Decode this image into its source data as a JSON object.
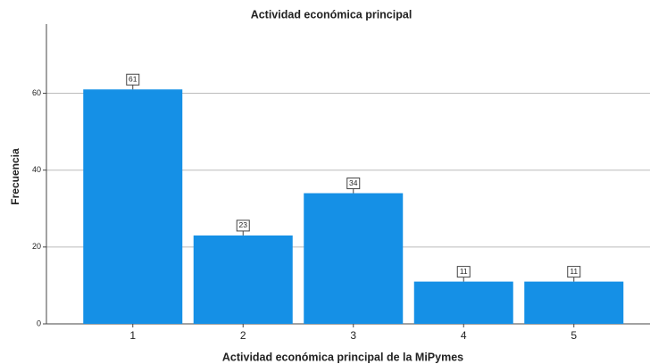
{
  "chart_data": {
    "type": "bar",
    "title": "Actividad económica principal",
    "x_label": "Actividad económica principal de la MiPymes",
    "y_label": "Frecuencia",
    "categories": [
      "1",
      "2",
      "3",
      "4",
      "5"
    ],
    "values": [
      61,
      23,
      34,
      11,
      11
    ],
    "color": "#1590e6",
    "ylim": [
      0,
      78
    ],
    "yticks": [
      0,
      20,
      40,
      60
    ],
    "grid": true
  }
}
